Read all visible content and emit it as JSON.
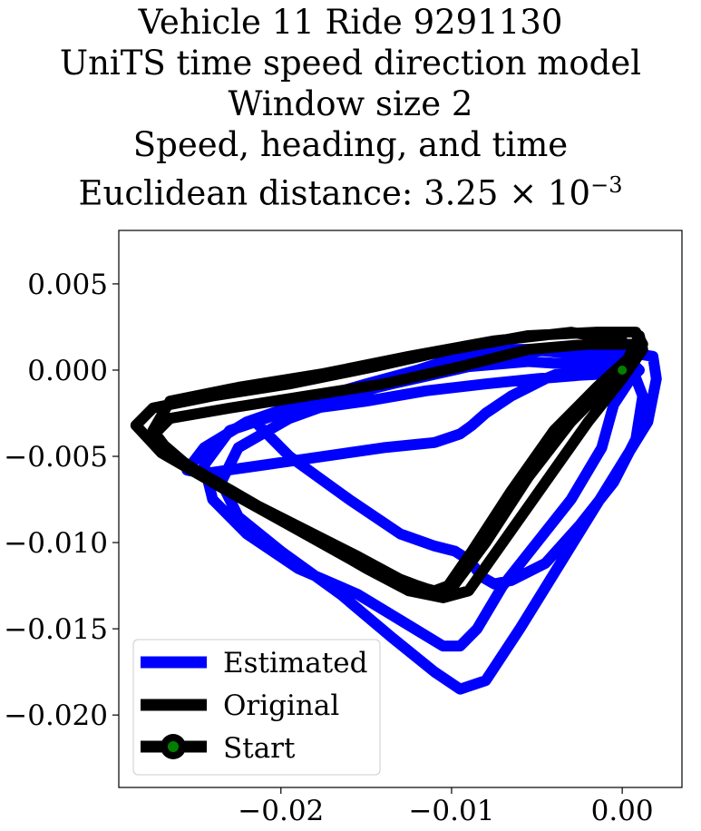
{
  "chart_data": {
    "type": "line",
    "title_lines": [
      "Vehicle 11 Ride 9291130",
      "UniTS time speed direction model",
      "Window size 2",
      "Speed, heading, and time"
    ],
    "title_metric": {
      "label": "Euclidean distance: ",
      "mantissa": "3.25",
      "times": "×",
      "base": "10",
      "exponent": "−3"
    },
    "xlim": [
      -0.0295,
      0.0035
    ],
    "ylim": [
      -0.0242,
      0.0081
    ],
    "x_ticks": [
      -0.02,
      -0.01,
      0.0
    ],
    "x_tick_labels": [
      "−0.02",
      "−0.01",
      "0.00"
    ],
    "y_ticks": [
      0.005,
      0.0,
      -0.005,
      -0.01,
      -0.015,
      -0.02
    ],
    "y_tick_labels": [
      "0.005",
      "0.000",
      "−0.005",
      "−0.010",
      "−0.015",
      "−0.020"
    ],
    "grid": false,
    "legend_position": "lower-left",
    "legend": [
      "Estimated",
      "Original",
      "Start"
    ],
    "colors": {
      "estimated": "#0000ff",
      "original": "#000000",
      "start": "#008000"
    },
    "series": [
      {
        "name": "Estimated",
        "color": "#0000ff",
        "x": [
          0.0,
          -0.0025,
          -0.0055,
          -0.009,
          -0.0135,
          -0.0185,
          -0.023,
          -0.0245,
          -0.024,
          -0.022,
          -0.019,
          -0.0155,
          -0.0125,
          -0.0105,
          -0.0095,
          -0.0085,
          -0.007,
          -0.005,
          -0.003,
          -0.0012,
          -0.0005,
          0.0005,
          0.001,
          0.0005,
          -0.001,
          -0.0035,
          -0.007,
          -0.011,
          -0.015,
          -0.0195,
          -0.0225,
          -0.0235,
          -0.0225,
          -0.02,
          -0.0165,
          -0.0135,
          -0.011,
          -0.0095,
          -0.008,
          -0.006,
          -0.0035,
          -0.001,
          0.0015,
          0.002,
          0.0018,
          0.0005,
          -0.002,
          -0.0045,
          -0.0065,
          -0.008,
          -0.0088,
          -0.0095,
          -0.011,
          -0.014,
          -0.0175,
          -0.021,
          -0.0245,
          -0.0255,
          -0.0245,
          -0.022,
          -0.0185,
          -0.015,
          -0.012,
          -0.0095,
          -0.0075,
          -0.0055,
          -0.0035,
          -0.0015,
          0.0005,
          0.0012,
          0.0008,
          -0.0005,
          -0.0025,
          -0.0045,
          -0.0065,
          -0.0075,
          -0.0082,
          -0.009,
          -0.0098,
          -0.011,
          -0.013,
          -0.016,
          -0.0195,
          -0.0215,
          -0.0205,
          -0.018,
          -0.015,
          -0.0115,
          -0.008,
          -0.005,
          -0.0025,
          -0.0005,
          0.0003,
          0.0
        ],
        "y": [
          0.0,
          0.0003,
          0.0005,
          0.0002,
          -0.0008,
          -0.002,
          -0.0035,
          -0.0055,
          -0.0075,
          -0.0095,
          -0.0115,
          -0.013,
          -0.0148,
          -0.016,
          -0.016,
          -0.015,
          -0.0125,
          -0.01,
          -0.0075,
          -0.0045,
          -0.002,
          -0.0005,
          0.0,
          0.0005,
          0.0012,
          0.0013,
          0.0008,
          0.0,
          -0.0012,
          -0.0028,
          -0.0045,
          -0.0065,
          -0.0085,
          -0.0105,
          -0.013,
          -0.0155,
          -0.0175,
          -0.0185,
          -0.018,
          -0.015,
          -0.011,
          -0.007,
          -0.003,
          -0.0005,
          0.0008,
          0.001,
          0.0005,
          -0.0005,
          -0.0015,
          -0.0025,
          -0.0032,
          -0.0037,
          -0.0042,
          -0.0045,
          -0.005,
          -0.0055,
          -0.006,
          -0.0058,
          -0.0045,
          -0.003,
          -0.0018,
          -0.0008,
          0.0,
          0.0008,
          0.0012,
          0.0012,
          0.001,
          0.0007,
          0.0003,
          -0.0015,
          -0.004,
          -0.0065,
          -0.009,
          -0.0112,
          -0.0122,
          -0.0124,
          -0.012,
          -0.011,
          -0.0105,
          -0.0102,
          -0.0095,
          -0.0075,
          -0.005,
          -0.003,
          -0.0025,
          -0.0022,
          -0.0018,
          -0.0012,
          -0.0008,
          -0.0005,
          -0.0003,
          -0.0002,
          -0.0001,
          0.0
        ]
      },
      {
        "name": "Original",
        "color": "#000000",
        "x": [
          0.0,
          -0.003,
          -0.0075,
          -0.0125,
          -0.0175,
          -0.0225,
          -0.0265,
          -0.0275,
          -0.0265,
          -0.0235,
          -0.0195,
          -0.0155,
          -0.0125,
          -0.011,
          -0.0102,
          -0.0088,
          -0.0065,
          -0.004,
          -0.0015,
          0.0005,
          0.0012,
          0.0008,
          -0.0015,
          -0.0055,
          -0.01,
          -0.0145,
          -0.0195,
          -0.024,
          -0.0275,
          -0.0285,
          -0.027,
          -0.0235,
          -0.0195,
          -0.0155,
          -0.012,
          -0.0105,
          -0.0098,
          -0.008,
          -0.0055,
          -0.003,
          -0.0005,
          0.001,
          0.0005,
          -0.002,
          -0.0055,
          -0.0095,
          -0.014,
          -0.0185,
          -0.023,
          -0.0265,
          -0.0275,
          -0.0255,
          -0.022,
          -0.0185,
          -0.015,
          -0.0125,
          -0.0105,
          -0.009,
          -0.007,
          -0.0045,
          -0.002,
          0.0,
          0.0012,
          0.001,
          0.0
        ],
        "y": [
          0.0017,
          0.0022,
          0.0017,
          0.0008,
          -0.0002,
          -0.001,
          -0.0018,
          -0.0035,
          -0.0048,
          -0.0068,
          -0.0088,
          -0.0108,
          -0.0124,
          -0.0128,
          -0.0125,
          -0.0105,
          -0.007,
          -0.0035,
          -0.001,
          0.0008,
          0.0015,
          0.0022,
          0.0022,
          0.002,
          0.0012,
          0.0002,
          -0.0008,
          -0.0015,
          -0.0022,
          -0.0032,
          -0.0048,
          -0.0068,
          -0.009,
          -0.0112,
          -0.0125,
          -0.013,
          -0.0124,
          -0.01,
          -0.0062,
          -0.003,
          -0.0005,
          0.001,
          0.0015,
          0.0015,
          0.0012,
          0.0002,
          -0.0008,
          -0.0015,
          -0.0022,
          -0.0028,
          -0.0038,
          -0.0055,
          -0.0075,
          -0.0095,
          -0.0115,
          -0.0128,
          -0.0132,
          -0.0128,
          -0.01,
          -0.0065,
          -0.003,
          -0.0005,
          0.0012,
          0.002,
          0.0
        ]
      },
      {
        "name": "Start",
        "color": "#008000",
        "x": [
          0.0
        ],
        "y": [
          0.0
        ]
      }
    ]
  }
}
